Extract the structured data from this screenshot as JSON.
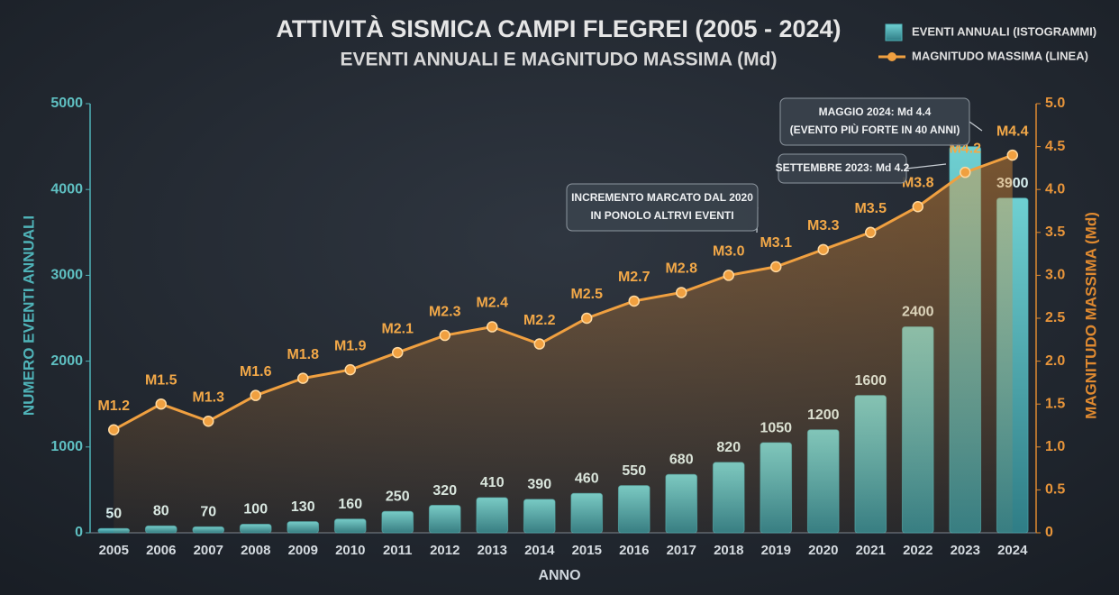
{
  "chart_data": {
    "type": "bar-line",
    "title": "ATTIVITÀ SISMICA CAMPI FLEGREI (2005 - 2024)",
    "subtitle": "EVENTI ANNUALI E MAGNITUDO MASSIMA (Md)",
    "x_label": "ANNO",
    "y_label": "NUMERO EVENTI ANNUALI",
    "y2_label": "MAGNITUDO MASSIMA (Md)",
    "categories": [
      "2005",
      "2006",
      "2007",
      "2008",
      "2009",
      "2010",
      "2011",
      "2012",
      "2013",
      "2014",
      "2015",
      "2016",
      "2017",
      "2018",
      "2019",
      "2020",
      "2021",
      "2022",
      "2023",
      "2024"
    ],
    "series": [
      {
        "name": "EVENTI ANNUALI (ISTOGRAMMI)",
        "type": "bar",
        "color": "#4fb3b8",
        "values": [
          50,
          80,
          70,
          100,
          130,
          160,
          250,
          320,
          410,
          390,
          460,
          550,
          680,
          820,
          1050,
          1200,
          1600,
          2400,
          4500,
          3900
        ],
        "value_labels": [
          "50",
          "80",
          "70",
          "100",
          "130",
          "160",
          "250",
          "320",
          "410",
          "390",
          "460",
          "550",
          "680",
          "820",
          "1050",
          "1200",
          "1600",
          "2400",
          null,
          "3900"
        ]
      },
      {
        "name": "MAGNITUDO MASSIMA (LINEA)",
        "type": "line",
        "axis": "y2",
        "color": "#f0a040",
        "values": [
          1.2,
          1.5,
          1.3,
          1.6,
          1.8,
          1.9,
          2.1,
          2.3,
          2.4,
          2.2,
          2.5,
          2.7,
          2.8,
          3.0,
          3.1,
          3.3,
          3.5,
          3.8,
          4.2,
          4.4
        ],
        "value_labels": [
          "M1.2",
          "M1.5",
          "M1.3",
          "M1.6",
          "M1.8",
          "M1.9",
          "M2.1",
          "M2.3",
          "M2.4",
          "M2.2",
          "M2.5",
          "M2.7",
          "M2.8",
          "M3.0",
          "M3.1",
          "M3.3",
          "M3.5",
          "M3.8",
          "M4.2",
          "M4.4"
        ]
      }
    ],
    "ylim": [
      0,
      5000
    ],
    "yticks": [
      0,
      1000,
      2000,
      3000,
      4000,
      5000
    ],
    "y2lim": [
      0,
      5
    ],
    "y2ticks": [
      0,
      0.5,
      {
        "value": 1,
        "label": "1.0"
      },
      1.5,
      {
        "value": 2,
        "label": "2.0"
      },
      2.5,
      {
        "value": 3,
        "label": "3.0"
      },
      3.5,
      {
        "value": 4,
        "label": "4.0"
      },
      4.5,
      {
        "value": 5,
        "label": "5.0"
      }
    ],
    "annotations": [
      {
        "lines": [
          "MAGGIO 2024: Md 4.4",
          "(EVENTO PIÙ FORTE IN 40 ANNI)"
        ]
      },
      {
        "lines": [
          "SETTEMBRE 2023: Md 4.2"
        ]
      },
      {
        "lines": [
          "INCREMENTO MARCATO DAL 2020",
          "IN PONOLO ALTRVI EVENTI"
        ]
      }
    ]
  }
}
